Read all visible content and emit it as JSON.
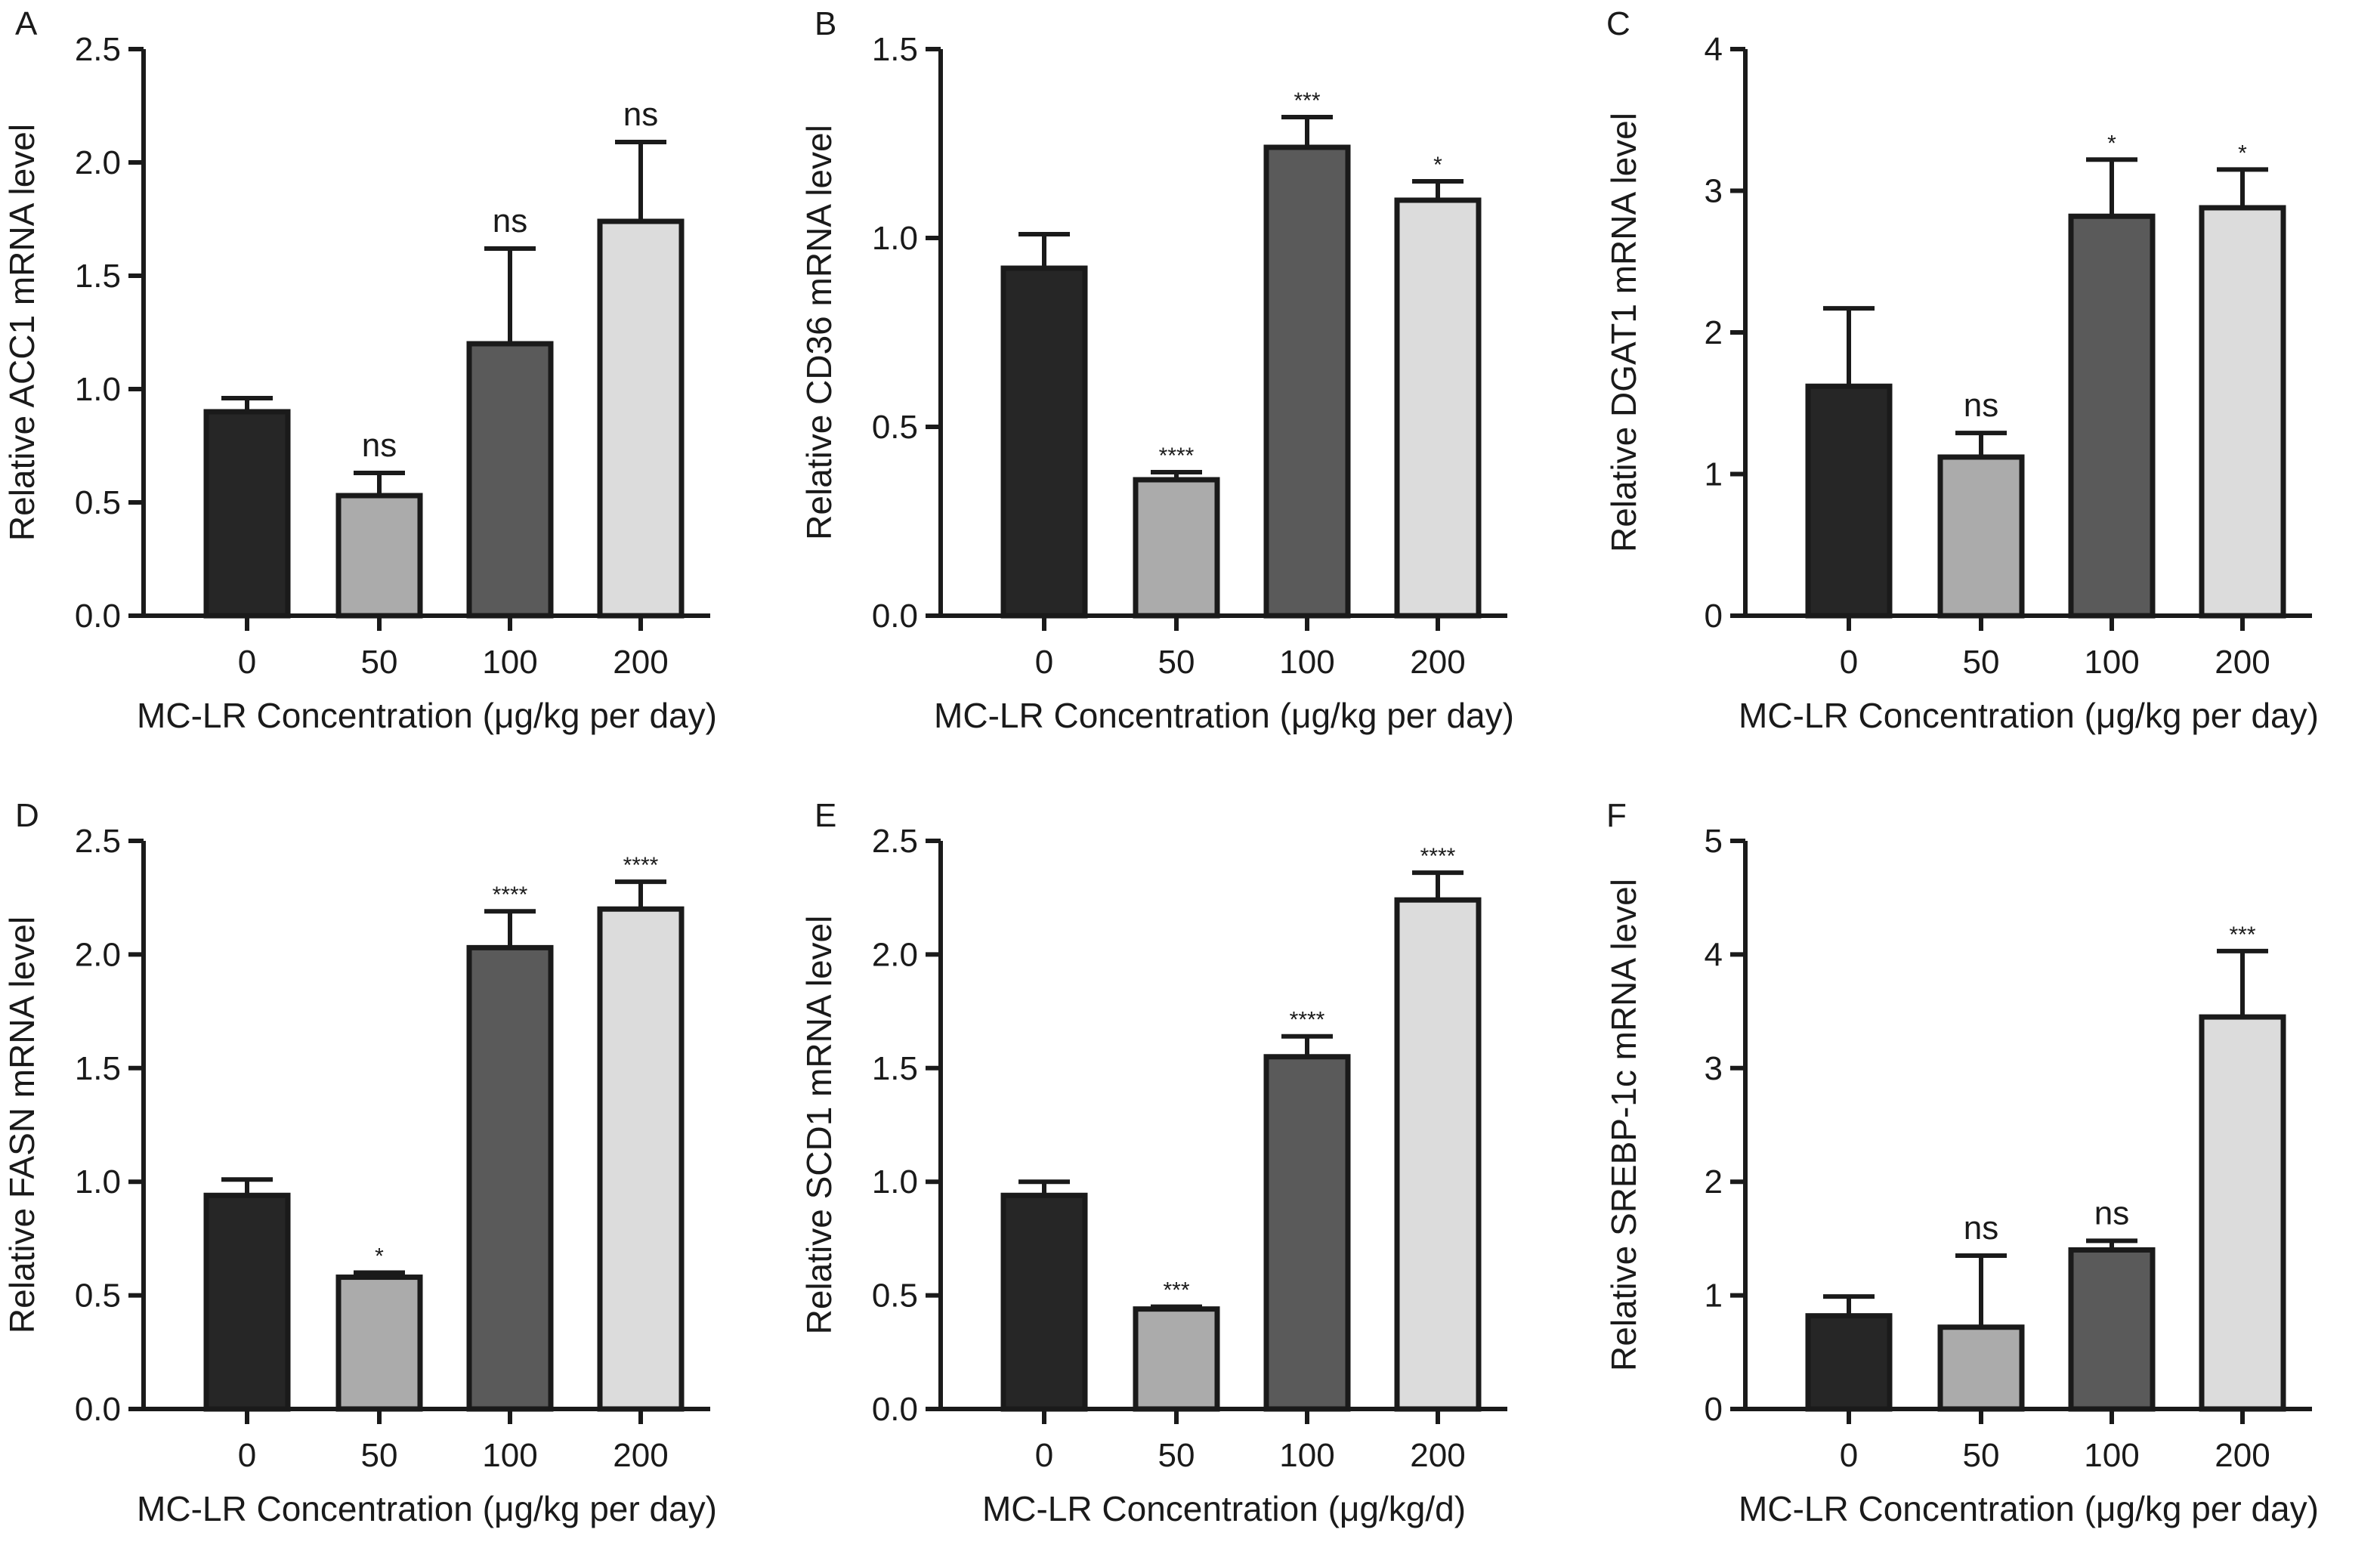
{
  "figure": {
    "colors": {
      "axis": "#1a1a1a",
      "bar_edge": "#1a1a1a",
      "groups": [
        "#262626",
        "#ababab",
        "#5a5a5a",
        "#dcdcdc"
      ]
    }
  },
  "chart_data": [
    {
      "panel": "A",
      "type": "bar",
      "categories": [
        "0",
        "50",
        "100",
        "200"
      ],
      "values": [
        0.9,
        0.53,
        1.2,
        1.74
      ],
      "errors": [
        0.06,
        0.1,
        0.42,
        0.35
      ],
      "significance": [
        "",
        "ns",
        "ns",
        "ns"
      ],
      "xlabel": "MC-LR Concentration (μg/kg per day)",
      "ylabel": "Relative ACC1 mRNA level",
      "ylim": [
        0,
        2.5
      ],
      "yticks": [
        "0.0",
        "0.5",
        "1.0",
        "1.5",
        "2.0",
        "2.5"
      ]
    },
    {
      "panel": "B",
      "type": "bar",
      "categories": [
        "0",
        "50",
        "100",
        "200"
      ],
      "values": [
        0.92,
        0.36,
        1.24,
        1.1
      ],
      "errors": [
        0.09,
        0.02,
        0.08,
        0.05
      ],
      "significance": [
        "",
        "****",
        "***",
        "*"
      ],
      "xlabel": "MC-LR Concentration (μg/kg per day)",
      "ylabel": "Relative CD36 mRNA level",
      "ylim": [
        0,
        1.5
      ],
      "yticks": [
        "0.0",
        "0.5",
        "1.0",
        "1.5"
      ]
    },
    {
      "panel": "C",
      "type": "bar",
      "categories": [
        "0",
        "50",
        "100",
        "200"
      ],
      "values": [
        1.62,
        1.12,
        2.82,
        2.88
      ],
      "errors": [
        0.55,
        0.17,
        0.4,
        0.27
      ],
      "significance": [
        "",
        "ns",
        "*",
        "*"
      ],
      "xlabel": "MC-LR Concentration (μg/kg per day)",
      "ylabel": "Relative DGAT1 mRNA level",
      "ylim": [
        0,
        4
      ],
      "yticks": [
        "0",
        "1",
        "2",
        "3",
        "4"
      ]
    },
    {
      "panel": "D",
      "type": "bar",
      "categories": [
        "0",
        "50",
        "100",
        "200"
      ],
      "values": [
        0.94,
        0.58,
        2.03,
        2.2
      ],
      "errors": [
        0.07,
        0.02,
        0.16,
        0.12
      ],
      "significance": [
        "",
        "*",
        "****",
        "****"
      ],
      "xlabel": "MC-LR Concentration (μg/kg per day)",
      "ylabel": "Relative FASN mRNA level",
      "ylim": [
        0,
        2.5
      ],
      "yticks": [
        "0.0",
        "0.5",
        "1.0",
        "1.5",
        "2.0",
        "2.5"
      ]
    },
    {
      "panel": "E",
      "type": "bar",
      "categories": [
        "0",
        "50",
        "100",
        "200"
      ],
      "values": [
        0.94,
        0.44,
        1.55,
        2.24
      ],
      "errors": [
        0.06,
        0.01,
        0.09,
        0.12
      ],
      "significance": [
        "",
        "***",
        "****",
        "****"
      ],
      "xlabel": "MC-LR Concentration (μg/kg/d)",
      "ylabel": "Relative SCD1 mRNA level",
      "ylim": [
        0,
        2.5
      ],
      "yticks": [
        "0.0",
        "0.5",
        "1.0",
        "1.5",
        "2.0",
        "2.5"
      ]
    },
    {
      "panel": "F",
      "type": "bar",
      "categories": [
        "0",
        "50",
        "100",
        "200"
      ],
      "values": [
        0.82,
        0.72,
        1.4,
        3.45
      ],
      "errors": [
        0.17,
        0.63,
        0.08,
        0.58
      ],
      "significance": [
        "",
        "ns",
        "ns",
        "***"
      ],
      "xlabel": "MC-LR Concentration (μg/kg per day)",
      "ylabel": "Relative SREBP-1c mRNA level",
      "ylim": [
        0,
        5
      ],
      "yticks": [
        "0",
        "1",
        "2",
        "3",
        "4",
        "5"
      ]
    }
  ]
}
